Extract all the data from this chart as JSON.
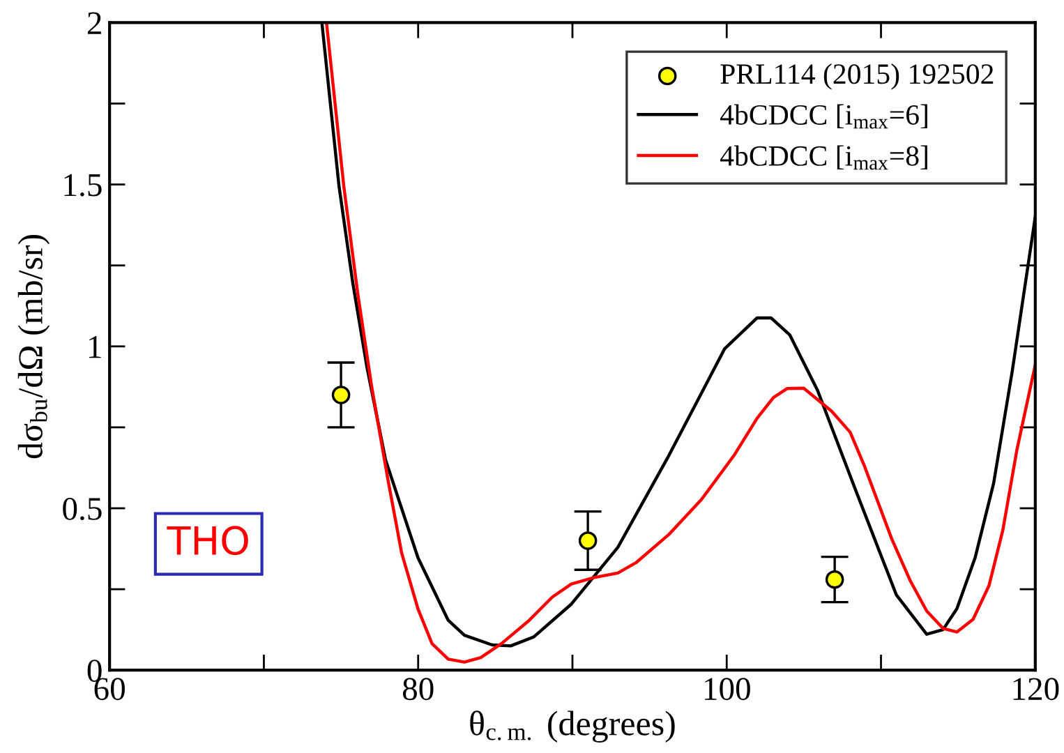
{
  "chart_data": {
    "type": "line",
    "xlabel": "θ$_{c.m.}$ (degrees)",
    "ylabel": "dσ$_{bu}$/dΩ (mb/sr)",
    "xlim": [
      60,
      120
    ],
    "ylim": [
      0,
      2
    ],
    "xticks": [
      60,
      {
        "value": 70,
        "label": null
      },
      80,
      {
        "value": 90,
        "label": null
      },
      100,
      {
        "value": 110,
        "label": null
      },
      120
    ],
    "yticks": [
      0,
      {
        "value": 0.25,
        "label": null
      },
      0.5,
      {
        "value": 0.75,
        "label": null
      },
      1,
      {
        "value": 1.25,
        "label": null
      },
      1.5,
      {
        "value": 1.75,
        "label": null
      },
      2
    ],
    "grid": false,
    "legend": "top right",
    "annotations": [
      "THO"
    ],
    "series": [
      {
        "name": "PRL114 (2015) 192502",
        "type": "scatter",
        "marker": "circle",
        "color": "#ffff00",
        "x": [
          75,
          91,
          107
        ],
        "values": [
          0.85,
          0.4,
          0.28
        ],
        "errors": [
          [
            0.75,
            0.95
          ],
          [
            0.31,
            0.49
          ],
          [
            0.21,
            0.35
          ]
        ]
      },
      {
        "name": "4bCDCC [i$_{max}$=6]",
        "marker": "none",
        "color": "#000000",
        "x": [
          73.76,
          74.87,
          75.77,
          76.68,
          77.89,
          79.99,
          81.95,
          83.0,
          84.8,
          86.0,
          87.5,
          89.93,
          92.94,
          96.25,
          99.87,
          101.97,
          102.87,
          104.08,
          105.89,
          108.3,
          111.0,
          112.96,
          114.02,
          114.92,
          116.1,
          117.3,
          118.5,
          120
        ],
        "values": [
          2.0,
          1.495,
          1.194,
          0.936,
          0.649,
          0.347,
          0.154,
          0.108,
          0.078,
          0.075,
          0.103,
          0.204,
          0.379,
          0.663,
          0.993,
          1.088,
          1.088,
          1.036,
          0.864,
          0.563,
          0.232,
          0.111,
          0.125,
          0.19,
          0.347,
          0.577,
          0.921,
          1.4
        ]
      },
      {
        "name": "4bCDCC [i$_{max}$=8]",
        "marker": "none",
        "color": "#ff0000",
        "x": [
          74.06,
          75.18,
          76.08,
          76.98,
          78.03,
          78.93,
          79.99,
          80.9,
          81.95,
          83.0,
          84.06,
          85.4,
          87.2,
          88.7,
          89.93,
          91.4,
          92.94,
          94.15,
          96.25,
          98.36,
          100.47,
          101.97,
          103.03,
          103.93,
          104.99,
          106.8,
          108.0,
          108.9,
          110.7,
          111.9,
          112.96,
          114.02,
          114.92,
          115.97,
          117.0,
          117.9,
          118.8,
          120
        ],
        "values": [
          2.0,
          1.495,
          1.165,
          0.878,
          0.591,
          0.362,
          0.189,
          0.082,
          0.034,
          0.025,
          0.039,
          0.082,
          0.154,
          0.226,
          0.266,
          0.286,
          0.3,
          0.333,
          0.419,
          0.527,
          0.663,
          0.778,
          0.842,
          0.87,
          0.871,
          0.8,
          0.735,
          0.634,
          0.405,
          0.276,
          0.183,
          0.129,
          0.118,
          0.157,
          0.261,
          0.433,
          0.678,
          0.943
        ]
      }
    ]
  }
}
